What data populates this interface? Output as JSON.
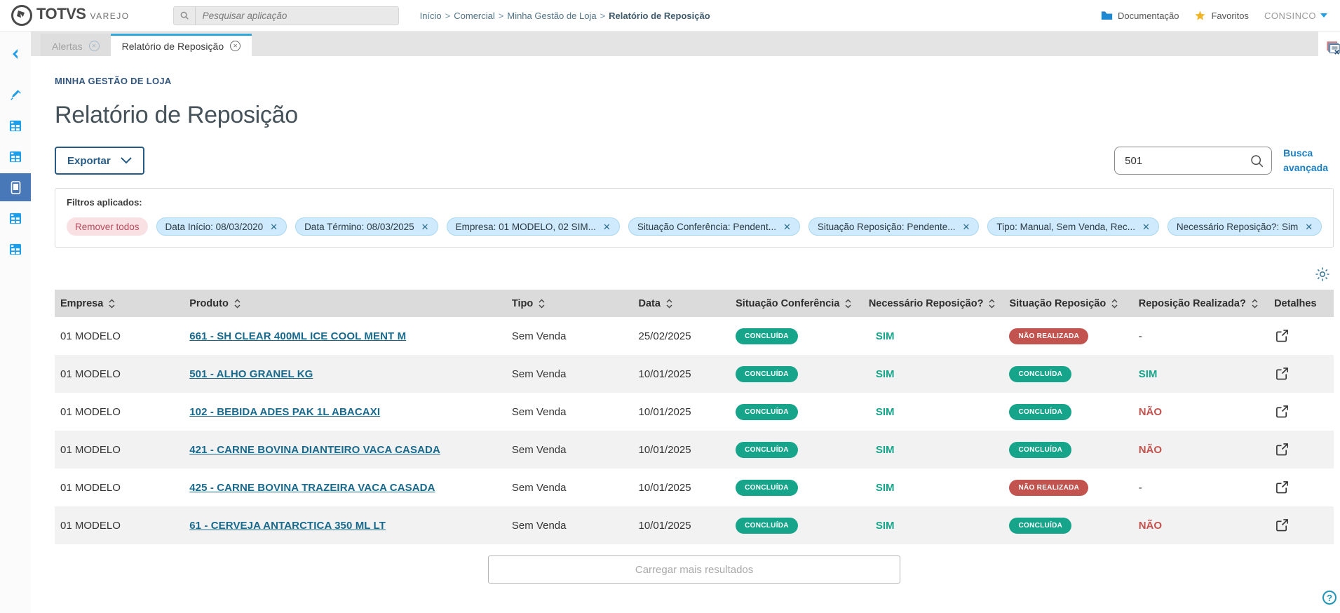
{
  "colors": {
    "accent_blue": "#1e9de8",
    "badge_green": "#16a58a",
    "badge_red": "#c3534e",
    "link_blue": "#19698c"
  },
  "header": {
    "brand_name": "TOTVS",
    "brand_sub": "VAREJO",
    "search_placeholder": "Pesquisar aplicação",
    "breadcrumb": {
      "items": [
        "Início",
        "Comercial",
        "Minha Gestão de Loja"
      ],
      "current": "Relatório de Reposição",
      "separator": ">"
    },
    "documentation_label": "Documentação",
    "favorites_label": "Favoritos",
    "user_label": "CONSINCO"
  },
  "sidebar": {
    "items": [
      {
        "icon": "chevron-left-icon",
        "active": false
      },
      {
        "icon": "syringe-icon",
        "active": false
      },
      {
        "icon": "app-window-icon",
        "active": false
      },
      {
        "icon": "app-window-icon",
        "active": false
      },
      {
        "icon": "smartphone-icon",
        "active": true
      },
      {
        "icon": "app-window-icon",
        "active": false
      },
      {
        "icon": "app-window-icon",
        "active": false
      }
    ]
  },
  "tabs": [
    {
      "label": "Alertas",
      "active": false
    },
    {
      "label": "Relatório de Reposição",
      "active": true
    }
  ],
  "page": {
    "section_label": "MINHA GESTÃO DE LOJA",
    "title": "Relatório de Reposição",
    "export_label": "Exportar",
    "search_value": "501",
    "advanced_search_label": "Busca avançada",
    "filters": {
      "label": "Filtros aplicados:",
      "remove_all_label": "Remover todos",
      "chips": [
        "Data Início: 08/03/2020",
        "Data Término: 08/03/2025",
        "Empresa: 01 MODELO, 02 SIM...",
        "Situação Conferência: Pendent...",
        "Situação Reposição: Pendente...",
        "Tipo: Manual, Sem Venda, Rec...",
        "Necessário Reposição?: Sim"
      ]
    },
    "load_more_label": "Carregar mais resultados",
    "help_label": "?"
  },
  "table": {
    "columns": [
      {
        "label": "Empresa",
        "sortable": true
      },
      {
        "label": "Produto",
        "sortable": true
      },
      {
        "label": "Tipo",
        "sortable": true
      },
      {
        "label": "Data",
        "sortable": true
      },
      {
        "label": "Situação Conferência",
        "sortable": true
      },
      {
        "label": "Necessário Reposição?",
        "sortable": true
      },
      {
        "label": "Situação Reposição",
        "sortable": true
      },
      {
        "label": "Reposição Realizada?",
        "sortable": true
      },
      {
        "label": "Detalhes",
        "sortable": false
      }
    ],
    "rows": [
      {
        "empresa": "01 MODELO",
        "produto": "661 - SH CLEAR 400ML ICE COOL MENT M",
        "tipo": "Sem Venda",
        "data": "25/02/2025",
        "situacao_conferencia": "CONCLUÍDA",
        "necessario_reposicao": "SIM",
        "situacao_reposicao": "NÃO REALIZADA",
        "reposicao_realizada": "-"
      },
      {
        "empresa": "01 MODELO",
        "produto": "501 - ALHO GRANEL KG",
        "tipo": "Sem Venda",
        "data": "10/01/2025",
        "situacao_conferencia": "CONCLUÍDA",
        "necessario_reposicao": "SIM",
        "situacao_reposicao": "CONCLUÍDA",
        "reposicao_realizada": "SIM"
      },
      {
        "empresa": "01 MODELO",
        "produto": "102 - BEBIDA ADES PAK 1L ABACAXI",
        "tipo": "Sem Venda",
        "data": "10/01/2025",
        "situacao_conferencia": "CONCLUÍDA",
        "necessario_reposicao": "SIM",
        "situacao_reposicao": "CONCLUÍDA",
        "reposicao_realizada": "NÃO"
      },
      {
        "empresa": "01 MODELO",
        "produto": "421 - CARNE BOVINA DIANTEIRO VACA CASADA",
        "tipo": "Sem Venda",
        "data": "10/01/2025",
        "situacao_conferencia": "CONCLUÍDA",
        "necessario_reposicao": "SIM",
        "situacao_reposicao": "CONCLUÍDA",
        "reposicao_realizada": "NÃO"
      },
      {
        "empresa": "01 MODELO",
        "produto": "425 - CARNE BOVINA TRAZEIRA VACA CASADA",
        "tipo": "Sem Venda",
        "data": "10/01/2025",
        "situacao_conferencia": "CONCLUÍDA",
        "necessario_reposicao": "SIM",
        "situacao_reposicao": "NÃO REALIZADA",
        "reposicao_realizada": "-"
      },
      {
        "empresa": "01 MODELO",
        "produto": "61 - CERVEJA ANTARCTICA 350 ML LT",
        "tipo": "Sem Venda",
        "data": "10/01/2025",
        "situacao_conferencia": "CONCLUÍDA",
        "necessario_reposicao": "SIM",
        "situacao_reposicao": "CONCLUÍDA",
        "reposicao_realizada": "NÃO"
      }
    ]
  }
}
